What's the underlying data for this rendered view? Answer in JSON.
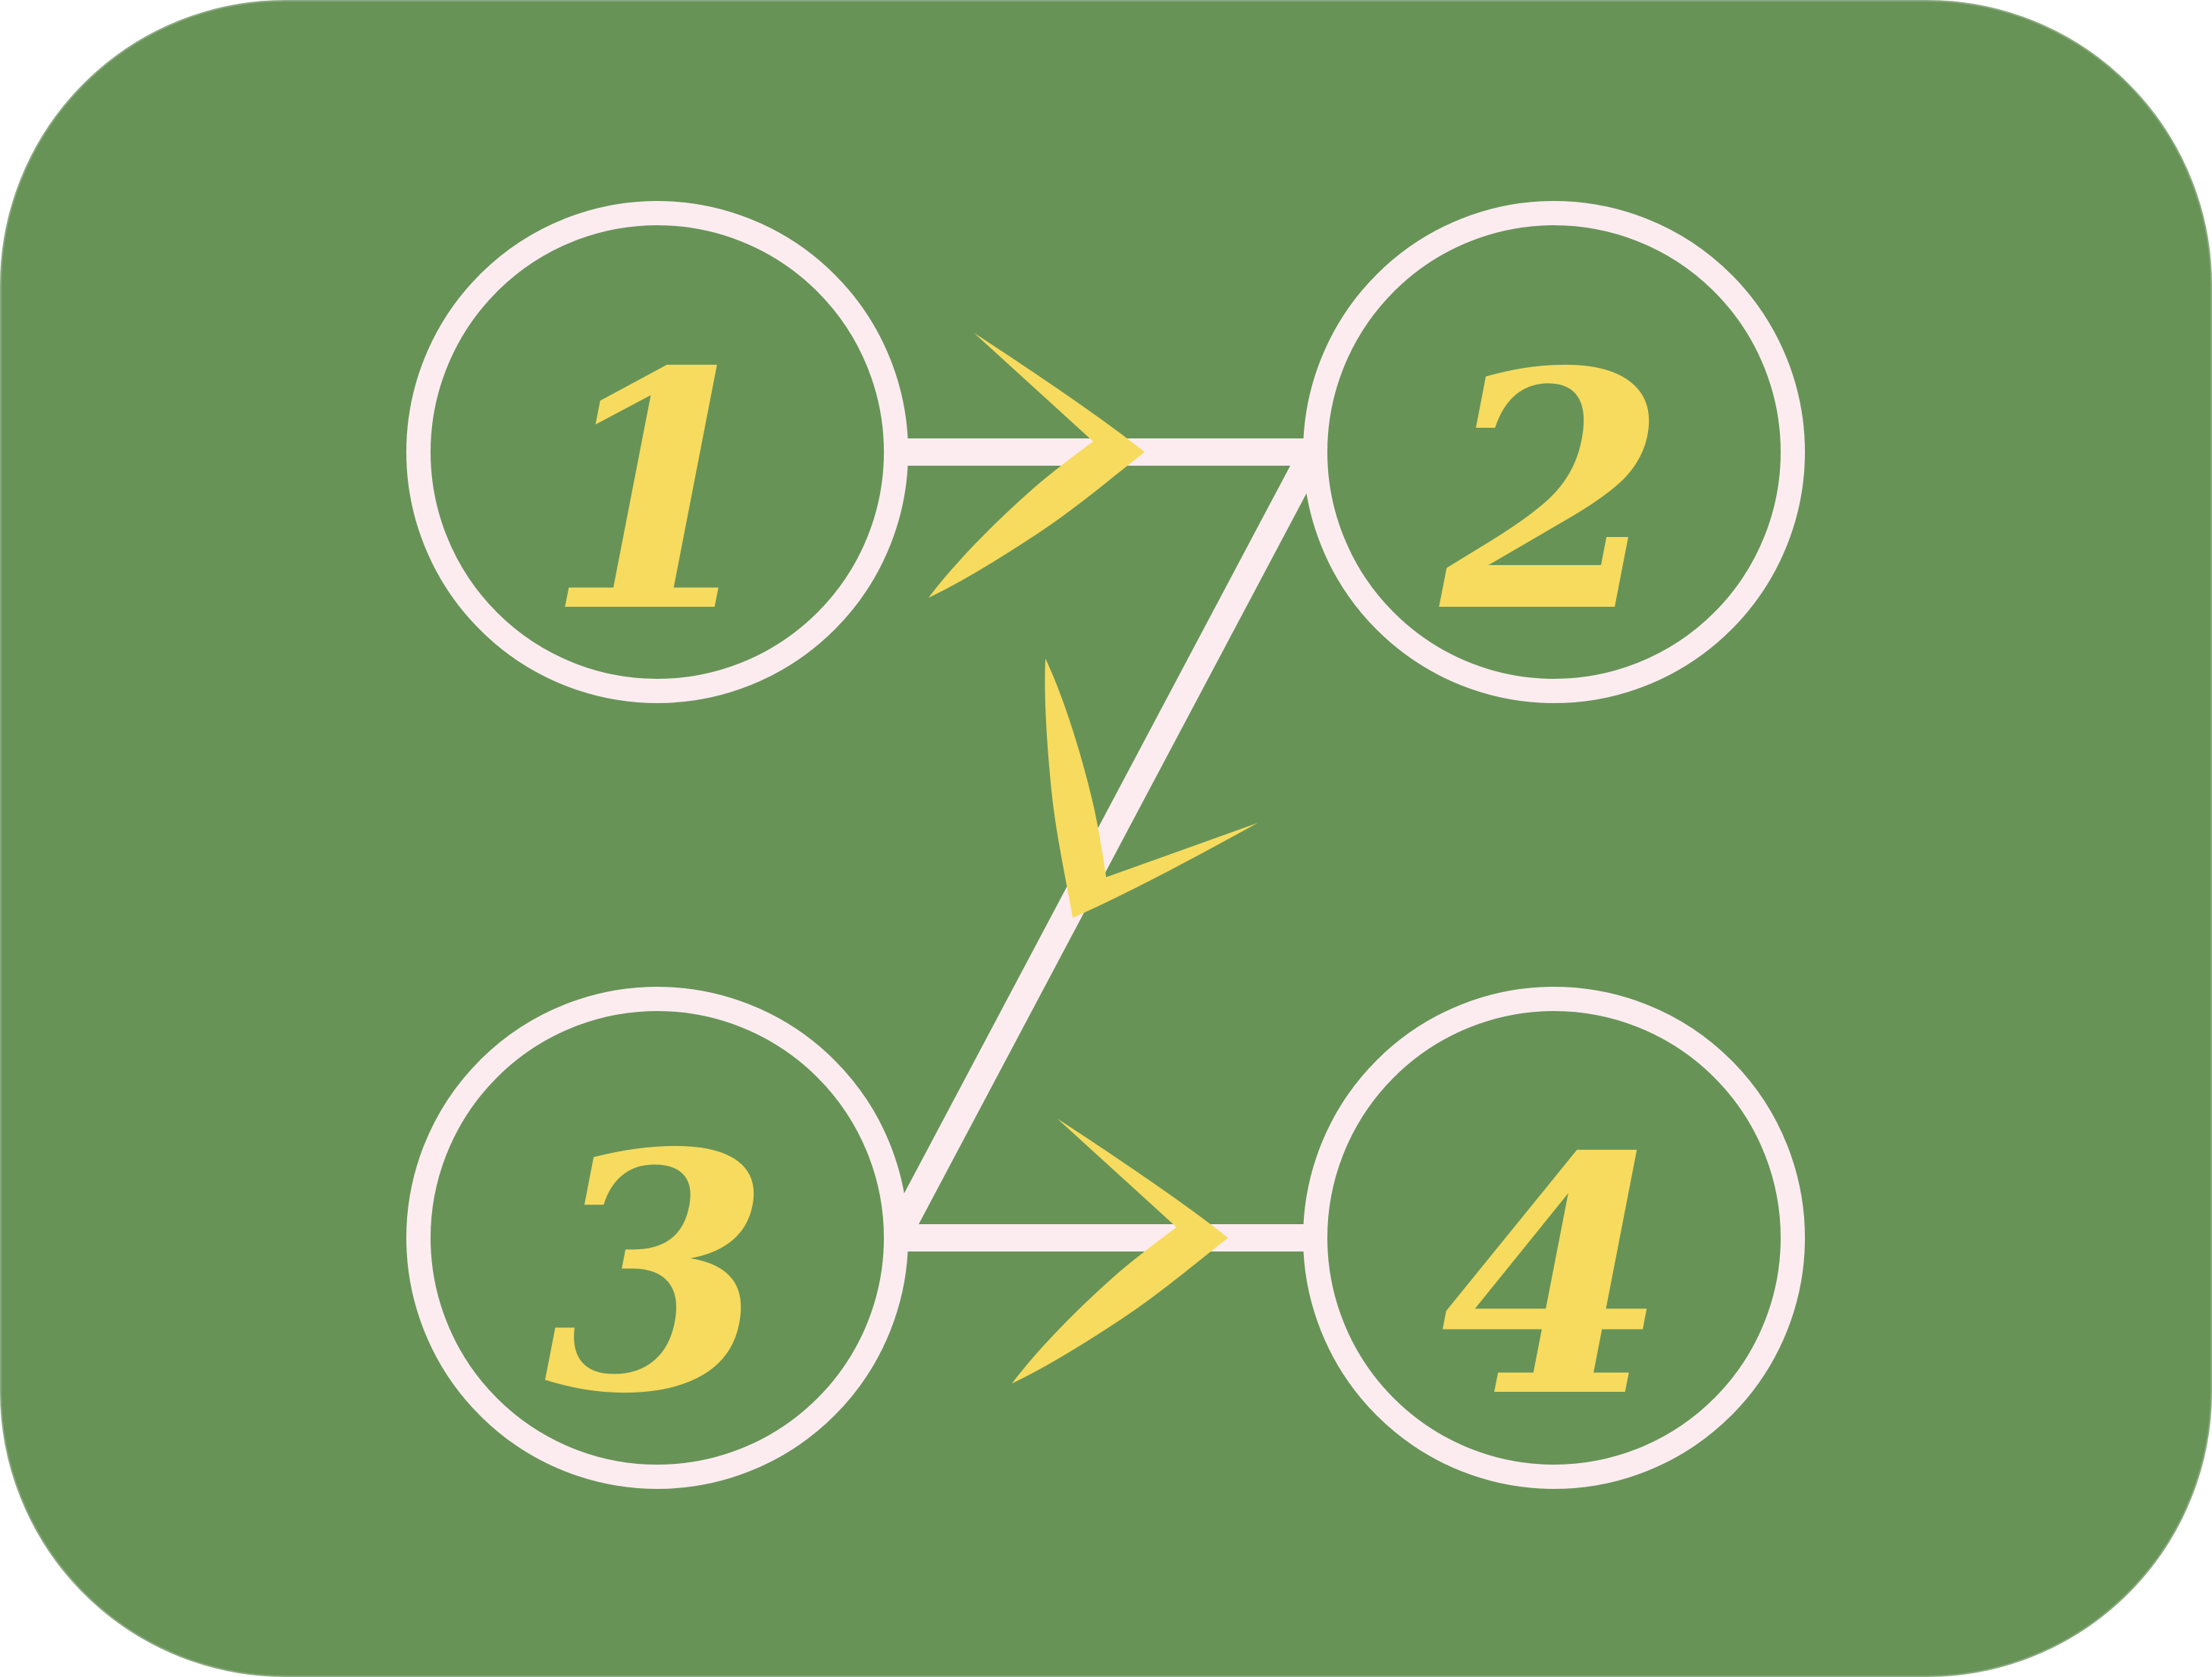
{
  "colors": {
    "panel": "#679357",
    "stroke": "#fcecf0",
    "accent": "#f7db5e"
  },
  "nodes": [
    {
      "id": "1",
      "label": "1"
    },
    {
      "id": "2",
      "label": "2"
    },
    {
      "id": "3",
      "label": "3"
    },
    {
      "id": "4",
      "label": "4"
    }
  ],
  "edges": [
    {
      "from": "1",
      "to": "2"
    },
    {
      "from": "2",
      "to": "3"
    },
    {
      "from": "3",
      "to": "4"
    }
  ]
}
